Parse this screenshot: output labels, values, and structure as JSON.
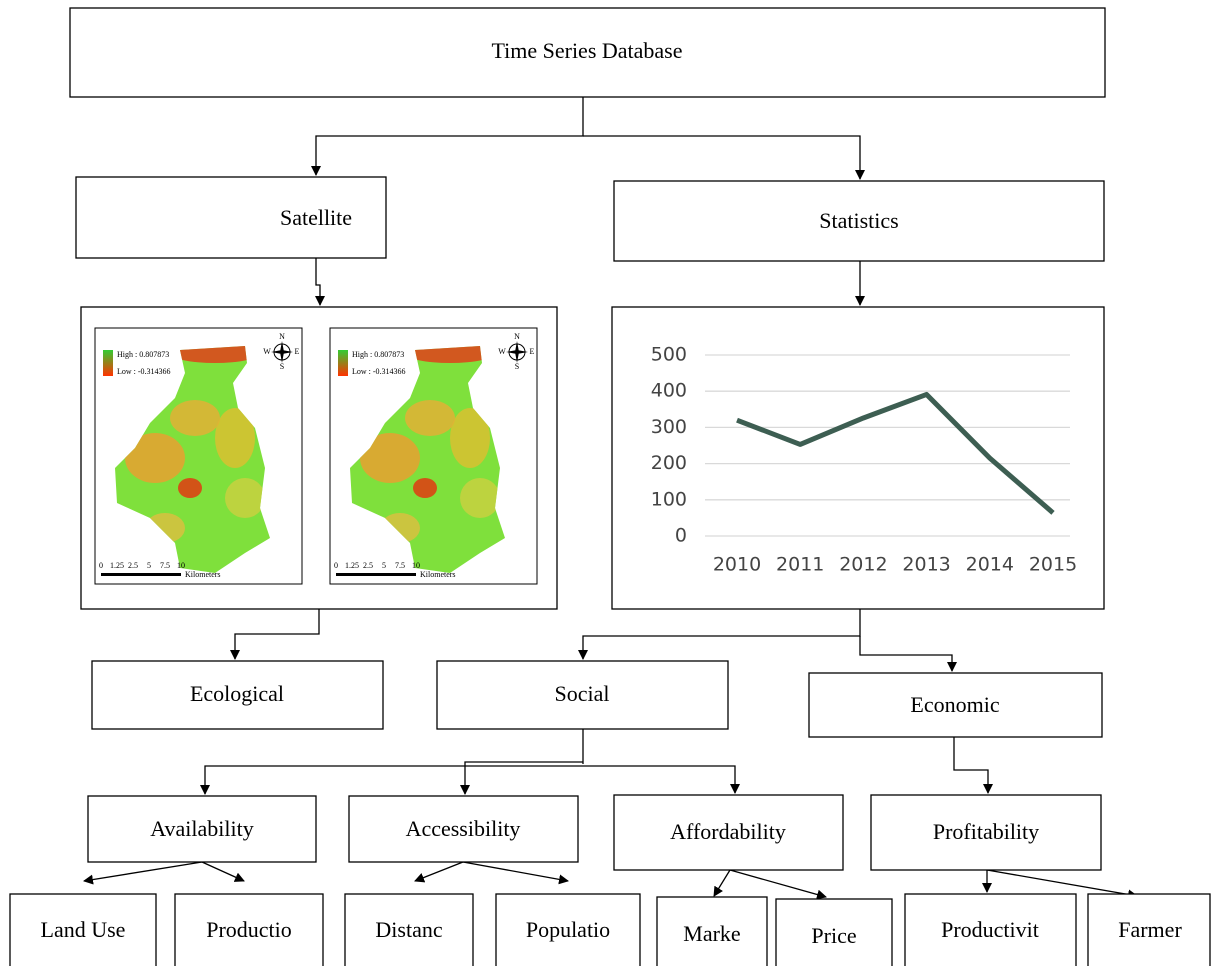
{
  "nodes": [
    {
      "label": "Time Series Database"
    },
    {
      "label": "Satellite"
    },
    {
      "label": "Statistics"
    },
    {
      "label": "Ecological"
    },
    {
      "label": "Social"
    },
    {
      "label": "Economic"
    },
    {
      "label": "Availability"
    },
    {
      "label": "Accessibility"
    },
    {
      "label": "Affordability"
    },
    {
      "label": "Profitability"
    },
    {
      "label": "Land Use"
    },
    {
      "label": "Productio"
    },
    {
      "label": "Distanc"
    },
    {
      "label": "Populatio"
    },
    {
      "label": "Marke"
    },
    {
      "label": "Price"
    },
    {
      "label": "Productivit"
    },
    {
      "label": "Farmer"
    }
  ],
  "maps": [
    {
      "legend_high": "High : 0.807873",
      "legend_low": "Low : -0.314366",
      "scale_labels": [
        "0",
        "1.25",
        "2.5",
        "5",
        "7.5",
        "10"
      ],
      "scale_unit": "Kilometers",
      "compass": [
        "N",
        "E",
        "S",
        "W"
      ]
    },
    {
      "legend_high": "High : 0.807873",
      "legend_low": "Low : -0.314366",
      "scale_labels": [
        "0",
        "1.25",
        "2.5",
        "5",
        "7.5",
        "10"
      ],
      "scale_unit": "Kilometers",
      "compass": [
        "N",
        "E",
        "S",
        "W"
      ]
    }
  ],
  "chart_data": {
    "type": "line",
    "categories": [
      "2010",
      "2011",
      "2012",
      "2013",
      "2014",
      "2015"
    ],
    "series": [
      {
        "color": "#3d5e52",
        "values": [
          320,
          253,
          326,
          391,
          215,
          64
        ]
      }
    ],
    "ylim": [
      0,
      500
    ],
    "yticks": [
      0,
      100,
      200,
      300,
      400,
      500
    ],
    "grid": true
  }
}
